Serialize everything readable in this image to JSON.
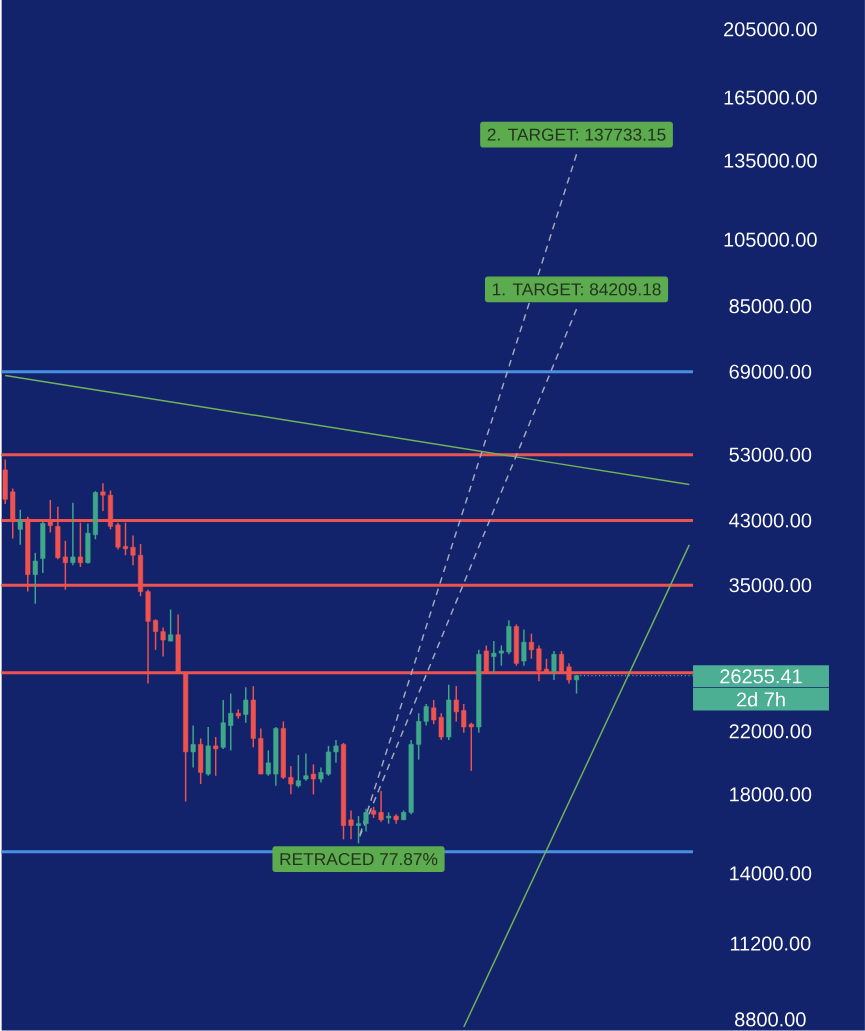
{
  "chart_data": {
    "type": "candlestick",
    "categories": [
      null,
      null,
      null,
      null,
      null,
      null,
      null,
      null,
      null,
      null,
      null,
      null,
      null,
      null,
      null,
      null,
      null,
      null,
      null,
      null,
      null,
      null,
      null,
      null,
      null,
      null,
      null,
      null,
      null,
      null,
      null,
      null,
      null,
      null,
      null,
      null,
      null,
      null,
      null,
      null,
      null,
      null,
      null,
      null,
      null,
      null,
      null,
      null,
      null,
      null,
      null,
      null,
      null,
      null,
      null,
      null,
      null,
      null,
      null,
      null,
      null,
      null,
      null,
      null,
      null,
      null,
      null,
      null,
      null,
      null,
      null,
      null,
      null,
      null,
      null,
      null,
      null,
      null,
      null,
      null,
      null,
      null,
      null,
      null,
      null,
      null,
      null,
      null,
      null,
      null,
      null,
      null
    ],
    "ohlc": [
      [
        50500,
        52200,
        45300,
        46000
      ],
      [
        47100,
        47600,
        40600,
        43000
      ],
      [
        41800,
        44500,
        39800,
        43100
      ],
      [
        43200,
        43500,
        34300,
        36200
      ],
      [
        36200,
        38800,
        33000,
        37800
      ],
      [
        38100,
        42800,
        36400,
        42600
      ],
      [
        43000,
        45900,
        41400,
        42300
      ],
      [
        42200,
        44900,
        38000,
        38200
      ],
      [
        38300,
        40300,
        34500,
        37600
      ],
      [
        37600,
        45500,
        37300,
        38300
      ],
      [
        38300,
        42700,
        37100,
        37600
      ],
      [
        37600,
        42600,
        37500,
        41300
      ],
      [
        41100,
        47200,
        40500,
        47000
      ],
      [
        47100,
        48400,
        44300,
        46600
      ],
      [
        46600,
        47300,
        41800,
        42200
      ],
      [
        42400,
        42700,
        39200,
        39500
      ],
      [
        39600,
        42700,
        38500,
        39300
      ],
      [
        39500,
        41000,
        37300,
        38500
      ],
      [
        38500,
        39900,
        33800,
        34300
      ],
      [
        34300,
        34500,
        25600,
        31200
      ],
      [
        31300,
        31400,
        28500,
        30200
      ],
      [
        30200,
        30600,
        27900,
        29400
      ],
      [
        29300,
        32400,
        29300,
        29900
      ],
      [
        29900,
        31900,
        26400,
        26500
      ],
      [
        26500,
        26600,
        17600,
        20600
      ],
      [
        20600,
        22400,
        19600,
        21100
      ],
      [
        21100,
        21500,
        18600,
        19300
      ],
      [
        19200,
        22300,
        19100,
        21000
      ],
      [
        21000,
        21600,
        19100,
        20800
      ],
      [
        20900,
        24300,
        20800,
        22600
      ],
      [
        22400,
        24800,
        20700,
        23300
      ],
      [
        23300,
        23600,
        22900,
        23100
      ],
      [
        23200,
        25300,
        22600,
        24300
      ],
      [
        24300,
        25400,
        20900,
        21500
      ],
      [
        21500,
        22200,
        19200,
        19200
      ],
      [
        19200,
        20700,
        19100,
        19900
      ],
      [
        19200,
        22300,
        18500,
        22200
      ],
      [
        22200,
        22700,
        18900,
        19000
      ],
      [
        19000,
        19700,
        18000,
        18600
      ],
      [
        18500,
        20400,
        18400,
        18800
      ],
      [
        18900,
        20500,
        18800,
        19100
      ],
      [
        19200,
        19800,
        18000,
        18900
      ],
      [
        18900,
        19600,
        18700,
        19300
      ],
      [
        19200,
        21000,
        19100,
        20600
      ],
      [
        20600,
        21400,
        19900,
        21000
      ],
      [
        21100,
        21200,
        15600,
        16300
      ],
      [
        16600,
        17100,
        15600,
        16300
      ],
      [
        16300,
        16800,
        15400,
        16400
      ],
      [
        16400,
        17200,
        16000,
        17000
      ],
      [
        17100,
        17300,
        16700,
        16900
      ],
      [
        17000,
        18200,
        16500,
        16600
      ],
      [
        16700,
        17000,
        16400,
        16800
      ],
      [
        16800,
        16900,
        16400,
        16600
      ],
      [
        16600,
        17100,
        16600,
        17000
      ],
      [
        17000,
        21400,
        16900,
        21100
      ],
      [
        21100,
        23300,
        20100,
        22700
      ],
      [
        22700,
        24000,
        22400,
        23800
      ],
      [
        23700,
        24300,
        22500,
        22800
      ],
      [
        23000,
        23300,
        21400,
        21600
      ],
      [
        21600,
        25500,
        21400,
        24300
      ],
      [
        24300,
        25400,
        22700,
        23400
      ],
      [
        23500,
        24000,
        21900,
        22300
      ],
      [
        22500,
        22600,
        19400,
        22300
      ],
      [
        22300,
        28500,
        21900,
        28100
      ],
      [
        28400,
        28900,
        26500,
        26500
      ],
      [
        27900,
        29300,
        26500,
        28200
      ],
      [
        28200,
        28900,
        27100,
        28400
      ],
      [
        28300,
        31300,
        28100,
        30700
      ],
      [
        30700,
        30900,
        27100,
        27300
      ],
      [
        27500,
        30400,
        27100,
        29200
      ],
      [
        29200,
        30000,
        27700,
        28500
      ],
      [
        28600,
        28900,
        25800,
        26700
      ],
      [
        26800,
        27700,
        26400,
        26500
      ],
      [
        26600,
        28400,
        25900,
        28100
      ],
      [
        28100,
        28400,
        26500,
        26600
      ],
      [
        27000,
        27300,
        25600,
        25900
      ],
      [
        25900,
        26300,
        24800,
        26255.41
      ],
      null,
      null,
      null,
      null,
      null,
      null,
      null,
      null,
      null,
      null,
      null,
      null,
      null,
      null,
      null
    ],
    "colors": [
      "#ef5350",
      "#ef5350",
      "#3fa88a",
      "#ef5350",
      "#3fa88a",
      "#3fa88a",
      "#ef5350",
      "#ef5350",
      "#ef5350",
      "#3fa88a",
      "#ef5350",
      "#3fa88a",
      "#3fa88a",
      "#ef5350",
      "#ef5350",
      "#ef5350",
      "#ef5350",
      "#ef5350",
      "#ef5350",
      "#ef5350",
      "#ef5350",
      "#ef5350",
      "#3fa88a",
      "#ef5350",
      "#ef5350",
      "#3fa88a",
      "#ef5350",
      "#3fa88a",
      "#ef5350",
      "#3fa88a",
      "#3fa88a",
      "#ef5350",
      "#3fa88a",
      "#ef5350",
      "#ef5350",
      "#3fa88a",
      "#3fa88a",
      "#ef5350",
      "#ef5350",
      "#3fa88a",
      "#3fa88a",
      "#ef5350",
      "#3fa88a",
      "#3fa88a",
      "#3fa88a",
      "#ef5350",
      "#ef5350",
      "#3fa88a",
      "#3fa88a",
      "#ef5350",
      "#ef5350",
      "#3fa88a",
      "#ef5350",
      "#3fa88a",
      "#3fa88a",
      "#3fa88a",
      "#3fa88a",
      "#ef5350",
      "#ef5350",
      "#3fa88a",
      "#ef5350",
      "#ef5350",
      "#ef5350",
      "#3fa88a",
      "#ef5350",
      "#3fa88a",
      "#3fa88a",
      "#3fa88a",
      "#ef5350",
      "#3fa88a",
      "#ef5350",
      "#ef5350",
      "#ef5350",
      "#3fa88a",
      "#ef5350",
      "#ef5350",
      "#3fa88a",
      null,
      null,
      null,
      null,
      null,
      null,
      null,
      null,
      null,
      null,
      null,
      null,
      null,
      null,
      null
    ],
    "series": [
      {
        "type": "line",
        "values": [
          68200,
          null,
          null,
          null,
          null,
          null,
          null,
          null,
          null,
          null,
          null,
          null,
          null,
          null,
          null,
          null,
          null,
          null,
          null,
          null,
          null,
          null,
          null,
          null,
          null,
          null,
          null,
          null,
          null,
          null,
          null,
          null,
          null,
          null,
          null,
          null,
          null,
          null,
          null,
          null,
          null,
          null,
          null,
          null,
          null,
          null,
          null,
          null,
          null,
          null,
          null,
          null,
          null,
          null,
          null,
          null,
          null,
          null,
          null,
          null,
          null,
          null,
          null,
          null,
          null,
          null,
          null,
          null,
          null,
          null,
          null,
          null,
          null,
          null,
          null,
          null,
          null,
          null,
          null,
          null,
          null,
          null,
          null,
          null,
          null,
          null,
          null,
          null,
          null,
          null,
          null,
          48200
        ],
        "color": "#6fb35a",
        "line_style": "solid"
      },
      {
        "type": "line",
        "values": [
          null,
          null,
          null,
          null,
          null,
          null,
          null,
          null,
          null,
          null,
          null,
          null,
          null,
          null,
          null,
          null,
          null,
          null,
          null,
          null,
          null,
          null,
          null,
          null,
          null,
          null,
          null,
          null,
          null,
          null,
          null,
          null,
          null,
          null,
          null,
          null,
          null,
          null,
          null,
          null,
          null,
          null,
          null,
          null,
          null,
          null,
          null,
          null,
          null,
          null,
          null,
          null,
          null,
          null,
          null,
          null,
          null,
          null,
          null,
          null,
          null,
          8590,
          null,
          null,
          null,
          null,
          null,
          null,
          null,
          null,
          null,
          null,
          null,
          null,
          null,
          null,
          null,
          null,
          null,
          null,
          null,
          null,
          null,
          null,
          null,
          null,
          null,
          null,
          null,
          null,
          null,
          39800
        ],
        "color": "#6fb35a",
        "line_style": "solid"
      },
      {
        "type": "line",
        "values": [
          null,
          null,
          null,
          null,
          null,
          null,
          null,
          null,
          null,
          null,
          null,
          null,
          null,
          null,
          null,
          null,
          null,
          null,
          null,
          null,
          null,
          null,
          null,
          null,
          null,
          null,
          null,
          null,
          null,
          null,
          null,
          null,
          null,
          null,
          null,
          null,
          null,
          null,
          null,
          null,
          null,
          null,
          null,
          null,
          null,
          null,
          null,
          15600,
          null,
          null,
          null,
          null,
          null,
          null,
          null,
          null,
          null,
          null,
          null,
          null,
          null,
          null,
          null,
          null,
          null,
          null,
          null,
          null,
          null,
          null,
          null,
          null,
          null,
          null,
          null,
          null,
          137733.15,
          null,
          null,
          null,
          null,
          null,
          null,
          null,
          null,
          null,
          null,
          null,
          null,
          null,
          null,
          null
        ],
        "color": "#a3a9bb",
        "line_style": "dashed"
      },
      {
        "type": "line",
        "values": [
          null,
          null,
          null,
          null,
          null,
          null,
          null,
          null,
          null,
          null,
          null,
          null,
          null,
          null,
          null,
          null,
          null,
          null,
          null,
          null,
          null,
          null,
          null,
          null,
          null,
          null,
          null,
          null,
          null,
          null,
          null,
          null,
          null,
          null,
          null,
          null,
          null,
          null,
          null,
          null,
          null,
          null,
          null,
          null,
          null,
          null,
          null,
          15600,
          null,
          null,
          null,
          null,
          null,
          null,
          null,
          null,
          null,
          null,
          null,
          null,
          null,
          null,
          null,
          null,
          null,
          null,
          null,
          null,
          null,
          null,
          null,
          null,
          null,
          null,
          null,
          null,
          84209.18,
          null,
          null,
          null,
          null,
          null,
          null,
          null,
          null,
          null,
          null,
          null,
          null,
          null,
          null,
          null
        ],
        "color": "#a3a9bb",
        "line_style": "dashed"
      }
    ],
    "ref_lines": [
      {
        "axis": "y",
        "value": 69000,
        "color": "#4a90e2"
      },
      {
        "axis": "y",
        "value": 53000,
        "color": "#ef5350"
      },
      {
        "axis": "y",
        "value": 43000,
        "color": "#ef5350"
      },
      {
        "axis": "y",
        "value": 35000,
        "color": "#ef5350"
      },
      {
        "axis": "y",
        "value": 26500,
        "color": "#ef5350"
      },
      {
        "axis": "y",
        "value": 15000,
        "color": "#4a90e2"
      },
      {
        "axis": "y",
        "value": 26255.41,
        "label": "26255.41",
        "color": "#4caf93",
        "line_style": "dotted"
      }
    ],
    "annotations": [
      {
        "text": "2. TARGET: 137733.15",
        "y": 137733.15
      },
      {
        "text": "1. TARGET: 84209.18",
        "y": 84209.18
      },
      {
        "text": "RETRACED 77.87%",
        "y": 15600
      },
      "2d 7h"
    ],
    "ylim": [
      8500,
      225000
    ],
    "yticks": [
      {
        "value": 205000,
        "label": "205000.00"
      },
      {
        "value": 165000,
        "label": "165000.00"
      },
      {
        "value": 135000,
        "label": "135000.00"
      },
      {
        "value": 105000,
        "label": "105000.00"
      },
      {
        "value": 85000,
        "label": "85000.00"
      },
      {
        "value": 69000,
        "label": "69000.00"
      },
      {
        "value": 53000,
        "label": "53000.00"
      },
      {
        "value": 43000,
        "label": "43000.00"
      },
      {
        "value": 35000,
        "label": "35000.00"
      },
      {
        "value": 22000,
        "label": "22000.00"
      },
      {
        "value": 18000,
        "label": "18000.00"
      },
      {
        "value": 14000,
        "label": "14000.00"
      },
      {
        "value": 11200,
        "label": "11200.00"
      },
      {
        "value": 8800,
        "label": "8800.00"
      }
    ],
    "log": "y",
    "grid": false,
    "tick_labels": "y"
  }
}
